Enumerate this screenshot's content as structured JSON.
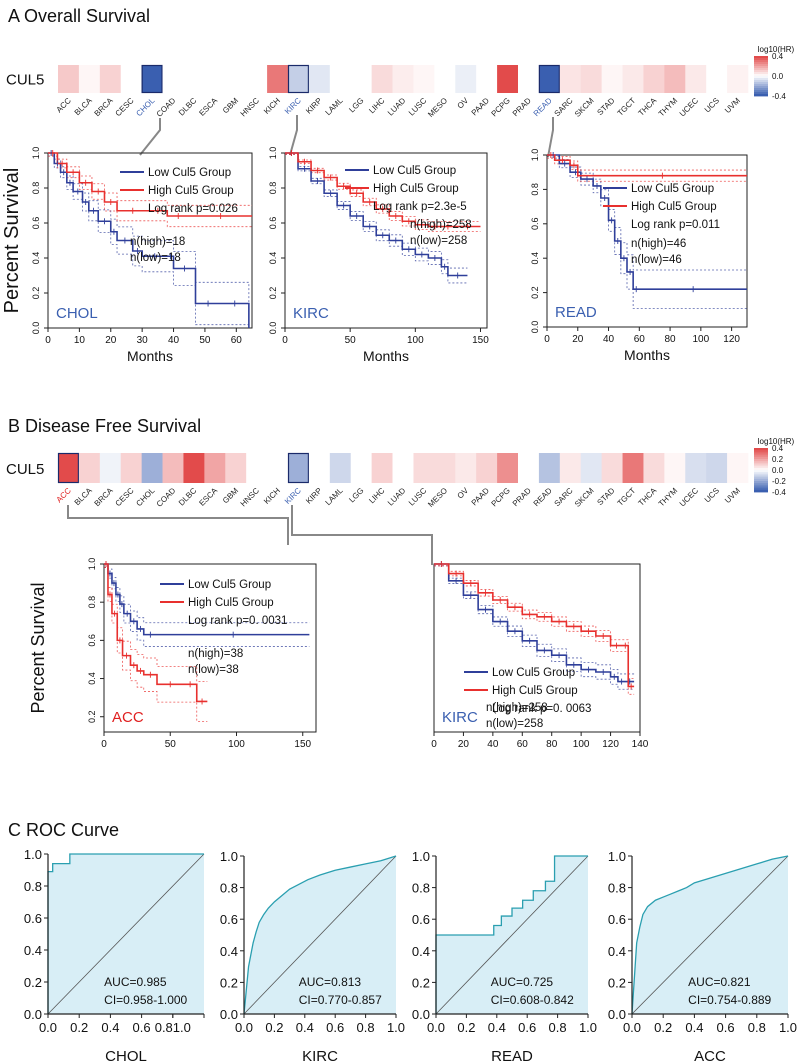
{
  "colors": {
    "red": "#e8302e",
    "blue": "#2f3f9a",
    "roc_line": "#2a9fb0",
    "roc_fill": "#d8eef6",
    "heat_pos": "#e24b4b",
    "heat_neg": "#3a5fb0",
    "highlight_label_os": "#3a5fb0",
    "highlight_label_acc": "#e02020"
  },
  "chart_data": [
    {
      "type": "heatmap",
      "id": "os_heatmap",
      "panel_title": "A Overall Survival",
      "gene": "CUL5",
      "legend_title": "log10(HR)",
      "legend_ticks": [
        "0.4",
        "0.0",
        "-0.4"
      ],
      "legend_range": [
        -0.4,
        0.4
      ],
      "cancers": [
        "ACC",
        "BLCA",
        "BRCA",
        "CESC",
        "CHOL",
        "COAD",
        "DLBC",
        "ESCA",
        "GBM",
        "HNSC",
        "KICH",
        "KIRC",
        "KIRP",
        "LAML",
        "LGG",
        "LIHC",
        "LUAD",
        "LUSC",
        "MESO",
        "OV",
        "PAAD",
        "PCPG",
        "PRAD",
        "READ",
        "SARC",
        "SKCM",
        "STAD",
        "TGCT",
        "THCA",
        "THYM",
        "UCEC",
        "UCS",
        "UVM"
      ],
      "values": [
        0.12,
        0.02,
        0.1,
        0.0,
        -0.5,
        0.0,
        0.0,
        0.0,
        0.0,
        null,
        0.3,
        -0.12,
        -0.06,
        0.0,
        0.0,
        0.08,
        0.04,
        0.02,
        0.0,
        -0.04,
        0.0,
        0.55,
        0.0,
        -0.45,
        0.06,
        0.08,
        0.02,
        0.05,
        0.1,
        0.15,
        0.05,
        0.0,
        0.03
      ],
      "boxed": [
        "CHOL",
        "KIRC",
        "READ"
      ]
    },
    {
      "type": "line",
      "id": "os_chol",
      "label": "CHOL",
      "xlim": [
        0,
        65
      ],
      "xticks": [
        "0",
        "10",
        "20",
        "30",
        "40",
        "50",
        "60"
      ],
      "ylim": [
        0,
        1
      ],
      "yticks": [
        "0.0",
        "0.2",
        "0.4",
        "0.6",
        "0.8",
        "1.0"
      ],
      "xlabel": "Months",
      "ylabel": "Percent Survival",
      "legend": [
        "Low Cul5 Group",
        "High Cul5 Group"
      ],
      "logrank": "Log rank p=0.026",
      "n_high": "n(high)=18",
      "n_low": "n(low)=18",
      "low": {
        "x": [
          0,
          2,
          4,
          6,
          8,
          11,
          13,
          16,
          20,
          22,
          27,
          30,
          38,
          40,
          47,
          55,
          64
        ],
        "y": [
          1,
          0.94,
          0.89,
          0.83,
          0.78,
          0.72,
          0.67,
          0.61,
          0.55,
          0.5,
          0.44,
          0.41,
          0.41,
          0.34,
          0.14,
          0.14,
          0
        ]
      },
      "high": {
        "x": [
          0,
          3,
          6,
          10,
          14,
          18,
          22,
          32,
          38,
          45,
          65
        ],
        "y": [
          1,
          0.94,
          0.89,
          0.83,
          0.78,
          0.72,
          0.67,
          0.67,
          0.64,
          0.64,
          0.64
        ]
      }
    },
    {
      "type": "line",
      "id": "os_kirc",
      "label": "KIRC",
      "xlim": [
        0,
        155
      ],
      "xticks": [
        "0",
        "50",
        "100",
        "150"
      ],
      "ylim": [
        0,
        1
      ],
      "yticks": [
        "0.0",
        "0.2",
        "0.4",
        "0.6",
        "0.8",
        "1.0"
      ],
      "xlabel": "Months",
      "ylabel": "",
      "legend": [
        "Low Cul5 Group",
        "High Cul5 Group"
      ],
      "logrank": "Log rank p=2.3e-5",
      "n_high": "n(high)=258",
      "n_low": "n(low)=258",
      "low": {
        "x": [
          0,
          10,
          20,
          30,
          40,
          50,
          60,
          70,
          80,
          90,
          100,
          110,
          120,
          125,
          140
        ],
        "y": [
          1,
          0.91,
          0.84,
          0.77,
          0.7,
          0.64,
          0.58,
          0.53,
          0.5,
          0.45,
          0.42,
          0.4,
          0.35,
          0.3,
          0.3
        ]
      },
      "high": {
        "x": [
          0,
          10,
          20,
          30,
          40,
          50,
          60,
          70,
          80,
          90,
          100,
          110,
          120,
          130,
          150
        ],
        "y": [
          1,
          0.95,
          0.9,
          0.86,
          0.81,
          0.77,
          0.72,
          0.68,
          0.64,
          0.61,
          0.59,
          0.58,
          0.58,
          0.58,
          0.58
        ]
      }
    },
    {
      "type": "line",
      "id": "os_read",
      "label": "READ",
      "xlim": [
        0,
        130
      ],
      "xticks": [
        "0",
        "20",
        "40",
        "60",
        "80",
        "100",
        "120"
      ],
      "ylim": [
        0,
        1
      ],
      "yticks": [
        "0.0",
        "0.2",
        "0.4",
        "0.6",
        "0.8",
        "1.0"
      ],
      "xlabel": "Months",
      "ylabel": "",
      "legend": [
        "Low Cul5 Group",
        "High Cul5 Group"
      ],
      "logrank": "Log rank p=0.011",
      "n_high": "n(high)=46",
      "n_low": "n(low)=46",
      "low": {
        "x": [
          0,
          8,
          15,
          22,
          30,
          35,
          40,
          44,
          48,
          52,
          56,
          60,
          130
        ],
        "y": [
          1,
          0.95,
          0.9,
          0.86,
          0.82,
          0.75,
          0.62,
          0.5,
          0.4,
          0.32,
          0.22,
          0.22,
          0.22
        ]
      },
      "high": {
        "x": [
          0,
          5,
          15,
          20,
          130
        ],
        "y": [
          1,
          0.97,
          0.94,
          0.88,
          0.88
        ]
      }
    },
    {
      "type": "heatmap",
      "id": "dfs_heatmap",
      "panel_title": "B Disease Free Survival",
      "gene": "CUL5",
      "legend_title": "log10(HR)",
      "legend_ticks": [
        "0.4",
        "0.2",
        "0.0",
        "-0.2",
        "-0.4"
      ],
      "legend_range": [
        -0.4,
        0.4
      ],
      "cancers": [
        "ACC",
        "BLCA",
        "BRCA",
        "CESC",
        "CHOL",
        "COAD",
        "DLBC",
        "ESCA",
        "GBM",
        "HNSC",
        "KICH",
        "KIRC",
        "KIRP",
        "LAML",
        "LGG",
        "LIHC",
        "LUAD",
        "LUSC",
        "MESO",
        "OV",
        "PAAD",
        "PCPG",
        "PRAD",
        "READ",
        "SARC",
        "SKCM",
        "STAD",
        "TGCT",
        "THCA",
        "THYM",
        "UCEC",
        "UCS",
        "UVM"
      ],
      "values": [
        0.75,
        0.1,
        -0.03,
        0.1,
        -0.2,
        0.15,
        0.45,
        0.2,
        0.1,
        null,
        0.0,
        -0.2,
        0.0,
        -0.1,
        0.0,
        0.1,
        0.0,
        0.08,
        0.08,
        0.05,
        0.1,
        0.25,
        0.0,
        -0.15,
        0.05,
        -0.06,
        0.08,
        0.3,
        0.08,
        0.02,
        -0.08,
        -0.1,
        0.02
      ],
      "boxed": [
        "ACC",
        "KIRC"
      ]
    },
    {
      "type": "line",
      "id": "dfs_acc",
      "label": "ACC",
      "xlim": [
        0,
        160
      ],
      "xticks": [
        "0",
        "50",
        "100",
        "150"
      ],
      "ylim": [
        0.12,
        1
      ],
      "yticks": [
        "0.2",
        "0.4",
        "0.6",
        "0.8",
        "1.0"
      ],
      "xlabel": "",
      "ylabel": "Percent Survival",
      "legend": [
        "Low Cul5 Group",
        "High Cul5 Group"
      ],
      "logrank": "Log rank p=0. 0031",
      "n_high": "n(high)=38",
      "n_low": "n(low)=38",
      "low": {
        "x": [
          0,
          3,
          6,
          9,
          12,
          15,
          20,
          25,
          30,
          40,
          155
        ],
        "y": [
          1,
          0.95,
          0.9,
          0.84,
          0.79,
          0.74,
          0.7,
          0.66,
          0.63,
          0.63,
          0.63
        ]
      },
      "high": {
        "x": [
          0,
          3,
          6,
          10,
          14,
          20,
          25,
          30,
          40,
          60,
          70,
          78
        ],
        "y": [
          1,
          0.84,
          0.74,
          0.6,
          0.52,
          0.47,
          0.44,
          0.42,
          0.37,
          0.37,
          0.28,
          0.28
        ]
      }
    },
    {
      "type": "line",
      "id": "dfs_kirc",
      "label": "KIRC",
      "xlim": [
        0,
        140
      ],
      "xticks": [
        "0",
        "20",
        "40",
        "60",
        "80",
        "100",
        "120",
        "140"
      ],
      "ylim": [
        0.3,
        1
      ],
      "yticks": [],
      "xlabel": "",
      "ylabel": "",
      "legend": [
        "Low Cul5 Group",
        "High Cul5 Group"
      ],
      "logrank": "Log rank p=0. 0063",
      "n_high": "n(high)=258",
      "n_low": "n(low)=258",
      "low": {
        "x": [
          0,
          10,
          20,
          30,
          40,
          50,
          60,
          70,
          80,
          90,
          100,
          110,
          120,
          125,
          130,
          136
        ],
        "y": [
          1,
          0.93,
          0.87,
          0.81,
          0.76,
          0.72,
          0.68,
          0.64,
          0.62,
          0.58,
          0.56,
          0.55,
          0.53,
          0.51,
          0.51,
          0.51
        ]
      },
      "high": {
        "x": [
          0,
          10,
          20,
          30,
          40,
          50,
          60,
          70,
          80,
          90,
          100,
          110,
          120,
          128,
          132,
          136
        ],
        "y": [
          1,
          0.96,
          0.92,
          0.88,
          0.85,
          0.82,
          0.79,
          0.78,
          0.76,
          0.74,
          0.72,
          0.7,
          0.66,
          0.66,
          0.49,
          0.49
        ]
      }
    },
    {
      "type": "area",
      "id": "roc_chol",
      "section_title": "C ROC Curve",
      "label": "CHOL",
      "auc": "AUC=0.985",
      "ci": "CI=0.958-1.000",
      "xticks": [
        "0.0",
        "0.2",
        "0.4",
        "0.6",
        "0.81.0"
      ],
      "yticks": [
        "0.0",
        "0.2",
        "0.4",
        "0.6",
        "0.8",
        "1.0"
      ],
      "xlim": [
        0,
        1
      ],
      "ylim": [
        0,
        1
      ],
      "fpr": [
        0,
        0,
        0.03,
        0.03,
        0.14,
        0.14,
        1
      ],
      "tpr": [
        0,
        0.89,
        0.89,
        0.94,
        0.94,
        1,
        1
      ]
    },
    {
      "type": "area",
      "id": "roc_kirc",
      "label": "KIRC",
      "auc": "AUC=0.813",
      "ci": "CI=0.770-0.857",
      "xticks": [
        "0.0",
        "0.2",
        "0.4",
        "0.6",
        "0.8",
        "1.0"
      ],
      "yticks": [
        "0.0",
        "0.2",
        "0.4",
        "0.6",
        "0.8",
        "1.0"
      ],
      "xlim": [
        0,
        1
      ],
      "ylim": [
        0,
        1
      ],
      "fpr": [
        0,
        0.02,
        0.03,
        0.05,
        0.06,
        0.08,
        0.1,
        0.13,
        0.16,
        0.2,
        0.25,
        0.3,
        0.36,
        0.42,
        0.5,
        0.6,
        0.7,
        0.8,
        0.9,
        1
      ],
      "tpr": [
        0,
        0.2,
        0.3,
        0.4,
        0.45,
        0.52,
        0.58,
        0.63,
        0.67,
        0.71,
        0.75,
        0.79,
        0.82,
        0.85,
        0.88,
        0.91,
        0.93,
        0.95,
        0.97,
        1
      ]
    },
    {
      "type": "area",
      "id": "roc_read",
      "label": "READ",
      "auc": "AUC=0.725",
      "ci": "CI=0.608-0.842",
      "xticks": [
        "0.0",
        "0.2",
        "0.4",
        "0.6",
        "0.8",
        "1.0"
      ],
      "yticks": [
        "0.0",
        "0.2",
        "0.4",
        "0.6",
        "0.8",
        "1.0"
      ],
      "xlim": [
        0,
        1
      ],
      "ylim": [
        0,
        1
      ],
      "fpr": [
        0,
        0,
        0.38,
        0.38,
        0.43,
        0.43,
        0.5,
        0.5,
        0.57,
        0.57,
        0.64,
        0.64,
        0.72,
        0.72,
        0.78,
        0.78,
        0.85,
        0.85,
        1
      ],
      "tpr": [
        0,
        0.5,
        0.5,
        0.56,
        0.56,
        0.62,
        0.62,
        0.67,
        0.67,
        0.72,
        0.72,
        0.78,
        0.78,
        0.84,
        0.84,
        1,
        1,
        1,
        1
      ]
    },
    {
      "type": "area",
      "id": "roc_acc",
      "label": "ACC",
      "auc": "AUC=0.821",
      "ci": "CI=0.754-0.889",
      "xticks": [
        "0.0",
        "0.2",
        "0.4",
        "0.6",
        "0.8",
        "1.0"
      ],
      "yticks": [
        "0.0",
        "0.2",
        "0.4",
        "0.6",
        "0.8",
        "1.0"
      ],
      "xlim": [
        0,
        1
      ],
      "ylim": [
        0,
        1
      ],
      "fpr": [
        0,
        0.02,
        0.03,
        0.05,
        0.07,
        0.1,
        0.15,
        0.2,
        0.25,
        0.3,
        0.35,
        0.4,
        0.5,
        0.6,
        0.7,
        0.8,
        0.9,
        1
      ],
      "tpr": [
        0,
        0.3,
        0.45,
        0.55,
        0.63,
        0.68,
        0.72,
        0.74,
        0.76,
        0.78,
        0.8,
        0.83,
        0.86,
        0.89,
        0.92,
        0.95,
        0.98,
        1
      ]
    }
  ]
}
